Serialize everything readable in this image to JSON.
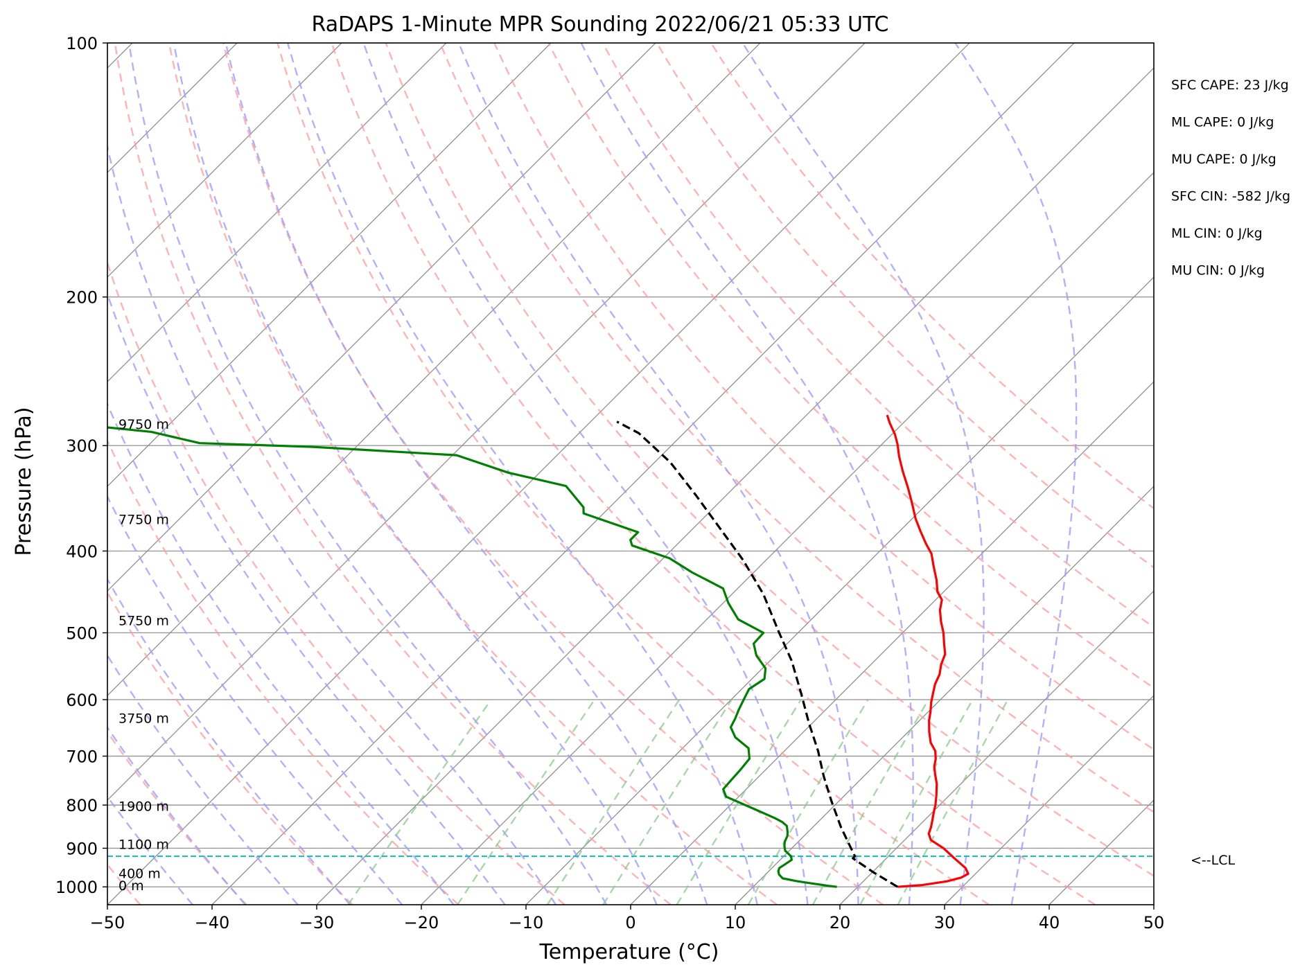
{
  "chart_data": {
    "type": "line",
    "title": "RaDAPS 1-Minute MPR Sounding 2022/06/21 05:33 UTC",
    "xlabel": "Temperature (°C)",
    "ylabel": "Pressure (hPa)",
    "xlim": [
      -50,
      50
    ],
    "ylim": [
      1050,
      100
    ],
    "y_scale": "log",
    "x_ticks": [
      -50,
      -40,
      -30,
      -20,
      -10,
      0,
      10,
      20,
      30,
      40,
      50
    ],
    "x_tick_labels": [
      "−50",
      "−40",
      "−30",
      "−20",
      "−10",
      "0",
      "10",
      "20",
      "30",
      "40",
      "50"
    ],
    "y_ticks": [
      1000,
      900,
      800,
      700,
      600,
      500,
      400,
      300,
      200,
      100
    ],
    "y_tick_labels": [
      "1000",
      "900",
      "800",
      "700",
      "600",
      "500",
      "400",
      "300",
      "200",
      "100"
    ],
    "grid": true,
    "skew_deg": 45,
    "colors": {
      "temperature": "#ff0000",
      "dewpoint": "#008000",
      "parcel": "#000000",
      "lcl": "#17becf",
      "dry_adiabat": "#ff9a9a",
      "moist_adiabat": "#9c9cff",
      "mixing_ratio": "#8cc88c",
      "isotherm": "#8c8c8c",
      "isobar": "#999999"
    },
    "series": [
      {
        "key": "temperature",
        "style": "solid",
        "points": [
          [
            23.8,
            1000
          ],
          [
            26.0,
            995
          ],
          [
            28.0,
            985
          ],
          [
            29.0,
            975
          ],
          [
            29.3,
            965
          ],
          [
            28.5,
            950
          ],
          [
            26.5,
            925
          ],
          [
            24.5,
            900
          ],
          [
            22.5,
            880
          ],
          [
            21.7,
            865
          ],
          [
            21.3,
            850
          ],
          [
            20.8,
            835
          ],
          [
            20.1,
            815
          ],
          [
            19.6,
            800
          ],
          [
            18.8,
            780
          ],
          [
            17.7,
            755
          ],
          [
            16.6,
            735
          ],
          [
            15.8,
            720
          ],
          [
            15.2,
            705
          ],
          [
            14.4,
            690
          ],
          [
            13.2,
            675
          ],
          [
            12.0,
            655
          ],
          [
            10.9,
            635
          ],
          [
            10.2,
            620
          ],
          [
            9.4,
            605
          ],
          [
            8.7,
            590
          ],
          [
            8.0,
            575
          ],
          [
            7.5,
            560
          ],
          [
            6.7,
            545
          ],
          [
            6.1,
            530
          ],
          [
            5.0,
            515
          ],
          [
            3.9,
            500
          ],
          [
            2.6,
            485
          ],
          [
            1.4,
            470
          ],
          [
            0.6,
            457
          ],
          [
            -0.6,
            447
          ],
          [
            -1.8,
            433
          ],
          [
            -3.4,
            417
          ],
          [
            -4.8,
            403
          ],
          [
            -6.3,
            392
          ],
          [
            -8.0,
            379
          ],
          [
            -9.7,
            366
          ],
          [
            -11.5,
            351
          ],
          [
            -13.3,
            337
          ],
          [
            -15.4,
            322
          ],
          [
            -17.2,
            309
          ],
          [
            -18.5,
            299
          ],
          [
            -19.7,
            291
          ],
          [
            -21.3,
            282
          ],
          [
            -22.3,
            276
          ]
        ]
      },
      {
        "key": "dewpoint",
        "style": "solid",
        "points": [
          [
            18.0,
            1000
          ],
          [
            17.0,
            997
          ],
          [
            16.5,
            995
          ],
          [
            14.8,
            989
          ],
          [
            13.5,
            984
          ],
          [
            12.0,
            977
          ],
          [
            11.3,
            967
          ],
          [
            10.9,
            958
          ],
          [
            10.7,
            950
          ],
          [
            10.9,
            940
          ],
          [
            11.1,
            929
          ],
          [
            10.7,
            920
          ],
          [
            9.6,
            906
          ],
          [
            9.1,
            895
          ],
          [
            8.7,
            884
          ],
          [
            8.4,
            870
          ],
          [
            8.0,
            860
          ],
          [
            7.4,
            847
          ],
          [
            6.6,
            838
          ],
          [
            5.5,
            829
          ],
          [
            3.0,
            811
          ],
          [
            -1.2,
            782
          ],
          [
            -2.2,
            766
          ],
          [
            -2.3,
            748
          ],
          [
            -2.4,
            728
          ],
          [
            -2.6,
            705
          ],
          [
            -3.7,
            685
          ],
          [
            -6.0,
            665
          ],
          [
            -7.4,
            647
          ],
          [
            -7.8,
            632
          ],
          [
            -8.3,
            617
          ],
          [
            -8.8,
            600
          ],
          [
            -9.3,
            583
          ],
          [
            -8.8,
            567
          ],
          [
            -9.7,
            551
          ],
          [
            -11.8,
            532
          ],
          [
            -13.2,
            515
          ],
          [
            -13.3,
            500
          ],
          [
            -17.0,
            482
          ],
          [
            -19.5,
            461
          ],
          [
            -21.4,
            443
          ],
          [
            -25.9,
            424
          ],
          [
            -29.4,
            408
          ],
          [
            -34.2,
            394
          ],
          [
            -34.9,
            388
          ],
          [
            -34.9,
            380
          ],
          [
            -41.9,
            361
          ],
          [
            -42.5,
            355
          ],
          [
            -46.2,
            335
          ],
          [
            -53.0,
            323
          ],
          [
            -59.6,
            308
          ],
          [
            -74.3,
            301
          ],
          [
            -85.3,
            298
          ],
          [
            -91.0,
            289
          ],
          [
            -99.0,
            283
          ]
        ]
      },
      {
        "key": "parcel",
        "style": "dashed",
        "points": [
          [
            23.8,
            1000
          ],
          [
            20.0,
            960
          ],
          [
            16.8,
            925
          ],
          [
            16.8,
            920
          ],
          [
            12.7,
            850
          ],
          [
            9.2,
            790
          ],
          [
            6.2,
            740
          ],
          [
            3.2,
            690
          ],
          [
            -0.3,
            640
          ],
          [
            -3.9,
            590
          ],
          [
            -7.9,
            540
          ],
          [
            -11.8,
            500
          ],
          [
            -17.0,
            450
          ],
          [
            -22.2,
            410
          ],
          [
            -27.6,
            375
          ],
          [
            -33.0,
            343
          ],
          [
            -38.5,
            314
          ],
          [
            -44.3,
            290
          ],
          [
            -47.5,
            281
          ]
        ]
      }
    ],
    "lcl": {
      "pressure": 920,
      "label": "<--LCL"
    },
    "height_labels": [
      {
        "label": "9750 m",
        "pressure": 284
      },
      {
        "label": "7750 m",
        "pressure": 368
      },
      {
        "label": "5750 m",
        "pressure": 485
      },
      {
        "label": "3750 m",
        "pressure": 633
      },
      {
        "label": "1900 m",
        "pressure": 805
      },
      {
        "label": "1100 m",
        "pressure": 893
      },
      {
        "label": "400 m",
        "pressure": 967
      },
      {
        "label": "0 m",
        "pressure": 1000
      }
    ],
    "annotations": [
      "SFC CAPE: 23 J/kg",
      "ML CAPE: 0 J/kg",
      "MU CAPE: 0 J/kg",
      "SFC CIN: -582 J/kg",
      "ML CIN: 0 J/kg",
      "MU CIN: 0 J/kg"
    ],
    "reference_lines": {
      "dry_adiabats_c": [
        -80,
        -70,
        -60,
        -50,
        -40,
        -30,
        -20,
        -10,
        0,
        10,
        20,
        30,
        40,
        50,
        60,
        70,
        80,
        90,
        100,
        110
      ],
      "moist_adiabats_c": [
        -45,
        -40,
        -35,
        -30,
        -25,
        -20,
        -15,
        -10,
        -5,
        0,
        5,
        10,
        15,
        20,
        25,
        30,
        35
      ],
      "mixing_ratios_gkg": [
        0.4,
        1,
        2,
        3,
        5,
        8,
        12,
        16,
        20
      ],
      "isotherms_c": [
        -160,
        -150,
        -140,
        -130,
        -120,
        -110,
        -100,
        -90,
        -80,
        -70,
        -60,
        -50,
        -40,
        -30,
        -20,
        -10,
        0,
        10,
        20,
        30,
        40,
        50
      ]
    }
  }
}
